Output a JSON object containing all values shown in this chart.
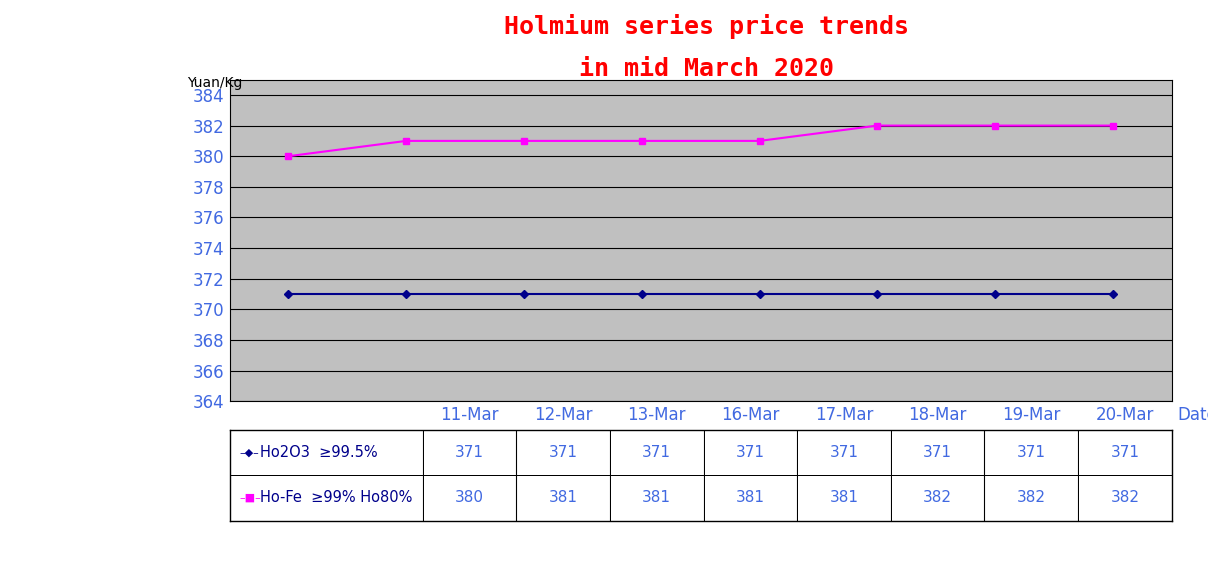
{
  "title_line1": "Holmium series price trends",
  "title_line2": "in mid March 2020",
  "title_color": "#FF0000",
  "ylabel": "Yuan/Kg",
  "xlabel": "Date",
  "dates": [
    "11-Mar",
    "12-Mar",
    "13-Mar",
    "16-Mar",
    "17-Mar",
    "18-Mar",
    "19-Mar",
    "20-Mar"
  ],
  "series": [
    {
      "label": "Ho2O3  ≥99.5%",
      "values": [
        371,
        371,
        371,
        371,
        371,
        371,
        371,
        371
      ],
      "color": "#00008B",
      "marker": "D",
      "markersize": 4
    },
    {
      "label": "Ho-Fe  ≥99% Ho80%",
      "values": [
        380,
        381,
        381,
        381,
        381,
        382,
        382,
        382
      ],
      "color": "#FF00FF",
      "marker": "s",
      "markersize": 4
    }
  ],
  "ylim": [
    364,
    385
  ],
  "yticks": [
    364,
    366,
    368,
    370,
    372,
    374,
    376,
    378,
    380,
    382,
    384
  ],
  "plot_bg_color": "#C0C0C0",
  "fig_bg_color": "#FFFFFF",
  "grid_color": "#000000",
  "ytick_label_color": "#4169E1",
  "xtick_label_color": "#4169E1",
  "ylabel_color": "#000000",
  "title_fontsize": 18,
  "axis_label_fontsize": 10,
  "tick_fontsize": 12,
  "table_fontsize": 11,
  "table_header_color": "#4169E1",
  "table_data_color": "#4169E1",
  "table_label_color": "#00008B",
  "marker_colors": [
    "#00008B",
    "#FF00FF"
  ]
}
